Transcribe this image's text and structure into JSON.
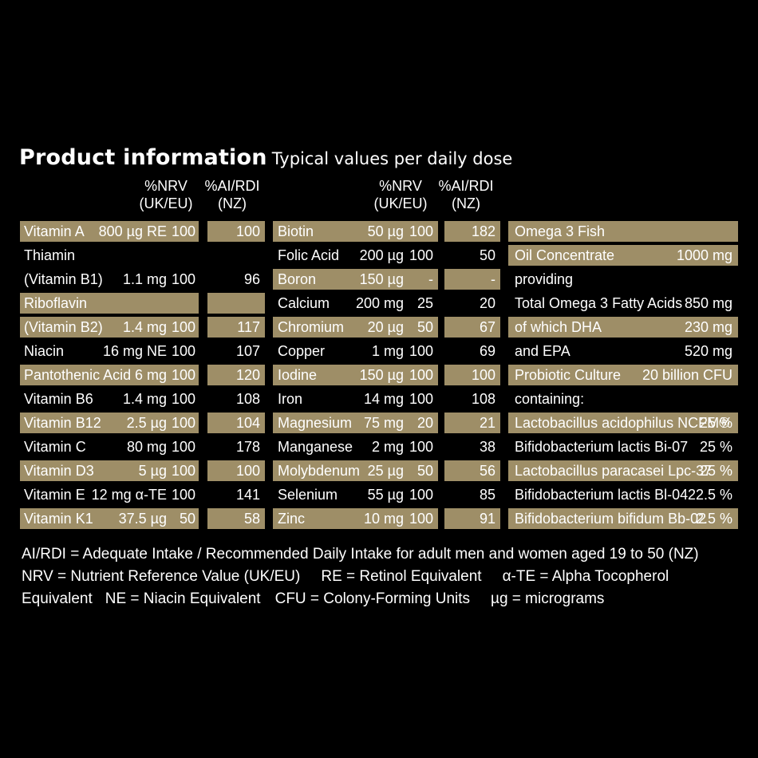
{
  "title": {
    "main": "Product information",
    "sub": "Typical values per daily dose"
  },
  "headers": {
    "nrv": "%NRV\n(UK/EU)",
    "ai": "%AI/RDI\n(NZ)"
  },
  "band_color": "#9e8e67",
  "col1": [
    {
      "name": "Vitamin A",
      "amount": "800 µg RE",
      "nrv": "100",
      "ai": "100",
      "band": true
    },
    {
      "name": "Thiamin",
      "amount": "",
      "nrv": "",
      "ai": "",
      "band": false
    },
    {
      "name": "(Vitamin B1)",
      "amount": "1.1 mg",
      "nrv": "100",
      "ai": "96",
      "band": false
    },
    {
      "name": "Riboflavin",
      "amount": "",
      "nrv": "",
      "ai": "",
      "band": true
    },
    {
      "name": "(Vitamin B2)",
      "amount": "1.4 mg",
      "nrv": "100",
      "ai": "117",
      "band": true
    },
    {
      "name": "Niacin",
      "amount": "16 mg NE",
      "nrv": "100",
      "ai": "107",
      "band": false
    },
    {
      "name": "Pantothenic Acid",
      "amount": "6 mg",
      "nrv": "100",
      "ai": "120",
      "band": true
    },
    {
      "name": "Vitamin B6",
      "amount": "1.4 mg",
      "nrv": "100",
      "ai": "108",
      "band": false
    },
    {
      "name": "Vitamin B12",
      "amount": "2.5 µg",
      "nrv": "100",
      "ai": "104",
      "band": true
    },
    {
      "name": "Vitamin C",
      "amount": "80 mg",
      "nrv": "100",
      "ai": "178",
      "band": false
    },
    {
      "name": "Vitamin D3",
      "amount": "5 µg",
      "nrv": "100",
      "ai": "100",
      "band": true
    },
    {
      "name": "Vitamin E",
      "amount": "12 mg α-TE",
      "nrv": "100",
      "ai": "141",
      "band": false
    },
    {
      "name": "Vitamin K1",
      "amount": "37.5 µg",
      "nrv": "50",
      "ai": "58",
      "band": true
    }
  ],
  "col2": [
    {
      "name": "Biotin",
      "amount": "50 µg",
      "nrv": "100",
      "ai": "182",
      "band": true
    },
    {
      "name": "Folic Acid",
      "amount": "200 µg",
      "nrv": "100",
      "ai": "50",
      "band": false
    },
    {
      "name": "Boron",
      "amount": "150 µg",
      "nrv": "-",
      "ai": "-",
      "band": true
    },
    {
      "name": "Calcium",
      "amount": "200 mg",
      "nrv": "25",
      "ai": "20",
      "band": false
    },
    {
      "name": "Chromium",
      "amount": "20 µg",
      "nrv": "50",
      "ai": "67",
      "band": true
    },
    {
      "name": "Copper",
      "amount": "1 mg",
      "nrv": "100",
      "ai": "69",
      "band": false
    },
    {
      "name": "Iodine",
      "amount": "150 µg",
      "nrv": "100",
      "ai": "100",
      "band": true
    },
    {
      "name": "Iron",
      "amount": "14 mg",
      "nrv": "100",
      "ai": "108",
      "band": false
    },
    {
      "name": "Magnesium",
      "amount": "75 mg",
      "nrv": "20",
      "ai": "21",
      "band": true
    },
    {
      "name": "Manganese",
      "amount": "2 mg",
      "nrv": "100",
      "ai": "38",
      "band": false
    },
    {
      "name": "Molybdenum",
      "amount": "25 µg",
      "nrv": "50",
      "ai": "56",
      "band": true
    },
    {
      "name": "Selenium",
      "amount": "55 µg",
      "nrv": "100",
      "ai": "85",
      "band": false
    },
    {
      "name": "Zinc",
      "amount": "10 mg",
      "nrv": "100",
      "ai": "91",
      "band": true
    }
  ],
  "col3": [
    {
      "name": "Omega 3 Fish",
      "value": "",
      "band": true
    },
    {
      "name": "Oil Concentrate",
      "value": "1000 mg",
      "band": true
    },
    {
      "name": "providing",
      "value": "",
      "band": false
    },
    {
      "name": "Total Omega 3 Fatty Acids",
      "value": "850 mg",
      "band": false
    },
    {
      "name": "of which DHA",
      "value": "230 mg",
      "band": true
    },
    {
      "name": "and EPA",
      "value": "520 mg",
      "band": false
    },
    {
      "name": "Probiotic Culture",
      "value": "20 billion CFU",
      "band": true
    },
    {
      "name": "containing:",
      "value": "",
      "band": false
    },
    {
      "name": "Lactobacillus acidophilus NCFM®",
      "value": "25 %",
      "band": true
    },
    {
      "name": "Bifidobacterium lactis Bi-07",
      "value": "25 %",
      "band": false
    },
    {
      "name": "Lactobacillus paracasei Lpc-37",
      "value": "25 %",
      "band": true
    },
    {
      "name": "Bifidobacterium lactis Bl-04",
      "value": "22.5 %",
      "band": false
    },
    {
      "name": "Bifidobacterium bifidum Bb-02",
      "value": "2.5 %",
      "band": true
    }
  ],
  "footnotes": {
    "line1": "AI/RDI = Adequate Intake / Recommended Daily Intake for adult men and women aged 19 to 50 (NZ)",
    "line2_a": "NRV = Nutrient Reference Value (UK/EU)",
    "line2_b": "RE = Retinol Equivalent",
    "line2_c": "α-TE = Alpha Tocopherol",
    "line3_a": "Equivalent",
    "line3_b": "NE = Niacin Equivalent",
    "line3_c": "CFU = Colony-Forming Units",
    "line3_d": "µg = micrograms"
  }
}
